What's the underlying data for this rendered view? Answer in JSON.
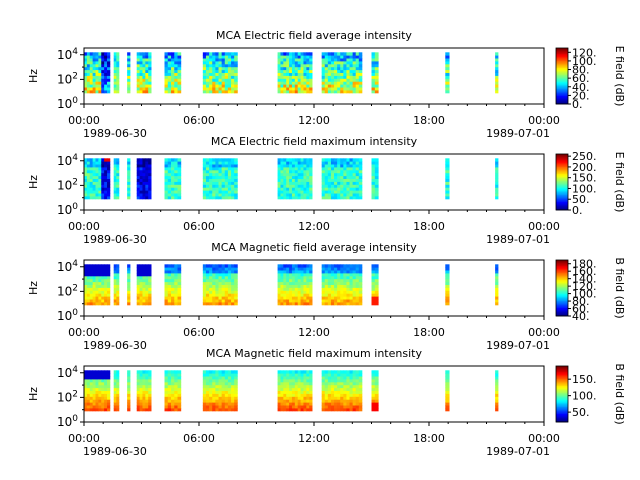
{
  "chart_data": [
    {
      "type": "heatmap",
      "title": "MCA  Electric field average intensity",
      "ylabel": "Hz",
      "y_scale": "log",
      "y_tick_labels": [
        "10^0",
        "10^2",
        "10^4"
      ],
      "x_tick_labels": [
        "00:00",
        "06:00",
        "12:00",
        "18:00",
        "00:00"
      ],
      "date_labels": [
        "1989-06-30",
        "1989-07-01"
      ],
      "x_range": [
        "1989-06-30 00:00",
        "1989-07-01 00:00"
      ],
      "colorbar": {
        "label": "E field (dB)",
        "range": [
          0,
          130
        ],
        "ticks": [
          "0.",
          "20.",
          "40.",
          "60.",
          "80.",
          "100.",
          "120."
        ]
      },
      "colormap": "jet",
      "data_intervals_hours": [
        [
          0.0,
          1.35
        ],
        [
          1.55,
          1.82
        ],
        [
          2.25,
          2.4
        ],
        [
          2.75,
          3.5
        ],
        [
          4.2,
          5.05
        ],
        [
          6.2,
          8.0
        ],
        [
          10.1,
          11.9
        ],
        [
          12.4,
          14.5
        ],
        [
          15.0,
          15.35
        ],
        [
          18.85,
          19.05
        ],
        [
          21.45,
          21.6
        ]
      ],
      "colors": {
        "low": "#00008f",
        "high": "#800000"
      }
    },
    {
      "type": "heatmap",
      "title": "MCA  Electric field maximum intensity",
      "ylabel": "Hz",
      "y_scale": "log",
      "y_tick_labels": [
        "10^0",
        "10^2",
        "10^4"
      ],
      "x_tick_labels": [
        "00:00",
        "06:00",
        "12:00",
        "18:00",
        "00:00"
      ],
      "date_labels": [
        "1989-06-30",
        "1989-07-01"
      ],
      "x_range": [
        "1989-06-30 00:00",
        "1989-07-01 00:00"
      ],
      "colorbar": {
        "label": "E field (dB)",
        "range": [
          0,
          260
        ],
        "ticks": [
          "0.",
          "50.",
          "100.",
          "150.",
          "200.",
          "250."
        ]
      },
      "colormap": "jet",
      "data_intervals_hours": [
        [
          0.0,
          1.35
        ],
        [
          1.55,
          1.82
        ],
        [
          2.25,
          2.4
        ],
        [
          2.75,
          3.5
        ],
        [
          4.2,
          5.05
        ],
        [
          6.2,
          8.0
        ],
        [
          10.1,
          11.9
        ],
        [
          12.4,
          14.5
        ],
        [
          15.0,
          15.35
        ],
        [
          18.85,
          19.05
        ],
        [
          21.45,
          21.6
        ]
      ],
      "colors": {
        "low": "#00008f",
        "high": "#800000"
      }
    },
    {
      "type": "heatmap",
      "title": "MCA  Magnetic field average intensity",
      "ylabel": "Hz",
      "y_scale": "log",
      "y_tick_labels": [
        "10^0",
        "10^2",
        "10^4"
      ],
      "x_tick_labels": [
        "00:00",
        "06:00",
        "12:00",
        "18:00",
        "00:00"
      ],
      "date_labels": [
        "1989-06-30",
        "1989-07-01"
      ],
      "x_range": [
        "1989-06-30 00:00",
        "1989-07-01 00:00"
      ],
      "colorbar": {
        "label": "B field (dB)",
        "range": [
          40,
          190
        ],
        "ticks": [
          "40.",
          "60.",
          "80.",
          "100.",
          "120.",
          "140.",
          "160.",
          "180."
        ]
      },
      "colormap": "jet",
      "data_intervals_hours": [
        [
          0.0,
          1.35
        ],
        [
          1.55,
          1.82
        ],
        [
          2.25,
          2.4
        ],
        [
          2.75,
          3.5
        ],
        [
          4.2,
          5.05
        ],
        [
          6.2,
          8.0
        ],
        [
          10.1,
          11.9
        ],
        [
          12.4,
          14.5
        ],
        [
          15.0,
          15.35
        ],
        [
          18.85,
          19.05
        ],
        [
          21.45,
          21.6
        ]
      ],
      "colors": {
        "low": "#00008f",
        "high": "#800000"
      }
    },
    {
      "type": "heatmap",
      "title": "MCA  Magnetic field maximum intensity",
      "ylabel": "Hz",
      "y_scale": "log",
      "y_tick_labels": [
        "10^0",
        "10^2",
        "10^4"
      ],
      "x_tick_labels": [
        "00:00",
        "06:00",
        "12:00",
        "18:00",
        "00:00"
      ],
      "date_labels": [
        "1989-06-30",
        "1989-07-01"
      ],
      "x_range": [
        "1989-06-30 00:00",
        "1989-07-01 00:00"
      ],
      "colorbar": {
        "label": "B field (dB)",
        "range": [
          20,
          190
        ],
        "ticks": [
          "50.",
          "100.",
          "150."
        ]
      },
      "colormap": "jet",
      "data_intervals_hours": [
        [
          0.0,
          1.35
        ],
        [
          1.55,
          1.82
        ],
        [
          2.25,
          2.4
        ],
        [
          2.75,
          3.5
        ],
        [
          4.2,
          5.05
        ],
        [
          6.2,
          8.0
        ],
        [
          10.1,
          11.9
        ],
        [
          12.4,
          14.5
        ],
        [
          15.0,
          15.35
        ],
        [
          18.85,
          19.05
        ],
        [
          21.45,
          21.6
        ]
      ],
      "colors": {
        "low": "#00008f",
        "high": "#800000"
      }
    }
  ]
}
